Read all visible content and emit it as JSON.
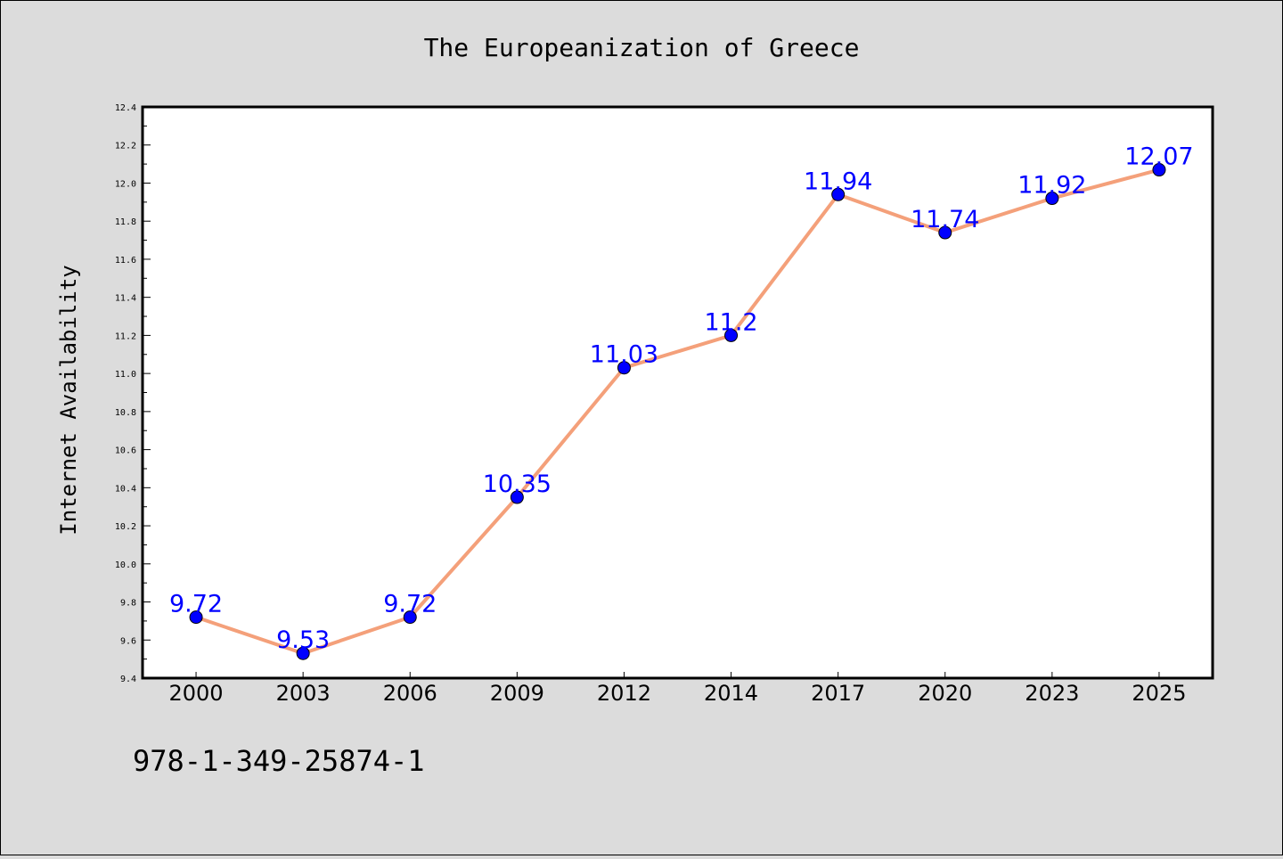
{
  "chart_data": {
    "type": "line",
    "title": "The Europeanization of Greece",
    "xlabel": "",
    "ylabel": "Internet Availability",
    "categories": [
      "2000",
      "2003",
      "2006",
      "2009",
      "2012",
      "2014",
      "2017",
      "2020",
      "2023",
      "2025"
    ],
    "series": [
      {
        "values": [
          9.72,
          9.53,
          9.72,
          10.35,
          11.03,
          11.2,
          11.94,
          11.74,
          11.92,
          12.07
        ],
        "labels": [
          "9.72",
          "9.53",
          "9.72",
          "10.35",
          "11.03",
          "11.2",
          "11.94",
          "11.74",
          "11.92",
          "12.07"
        ],
        "line_color": "#f4a07a",
        "marker_color": "#0000ff",
        "label_color": "#0000ff"
      }
    ],
    "ylim": [
      9.4,
      12.4
    ],
    "yticks": [
      "9.4",
      "9.6",
      "9.8",
      "10.0",
      "10.2",
      "10.4",
      "10.6",
      "10.8",
      "11.0",
      "11.2",
      "11.4",
      "11.6",
      "11.8",
      "12.0",
      "12.2",
      "12.4"
    ],
    "grid": false,
    "legend": "none"
  },
  "footer_text": "978-1-349-25874-1"
}
